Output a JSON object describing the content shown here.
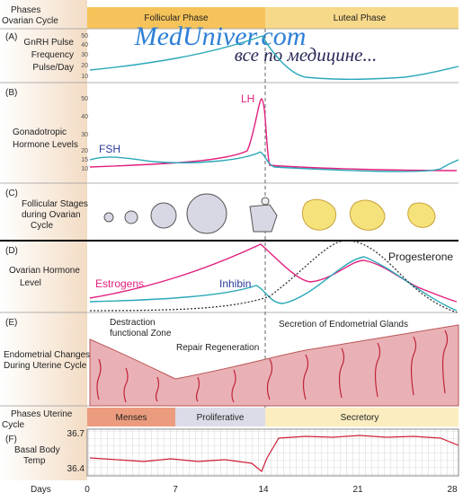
{
  "watermark": {
    "site": "MedUniver.com",
    "tagline": "все по медицине..."
  },
  "phases": {
    "label": [
      "Phases",
      "Ovarian Cycle"
    ],
    "follicular": "Follicular Phase",
    "luteal": "Luteal Phase"
  },
  "panels": [
    {
      "letter": "(A)",
      "label": [
        "GnRH Pulse",
        "Frequency",
        "Pulse/Day"
      ],
      "ticks": [
        50,
        40,
        30,
        20,
        10
      ]
    },
    {
      "letter": "(B)",
      "label": [
        "Gonadotropic",
        "Hormone Levels"
      ],
      "ticks": [
        50,
        40,
        30,
        20,
        15,
        10
      ],
      "curve_labels": [
        "LH",
        "FSH"
      ]
    },
    {
      "letter": "(C)",
      "label": [
        "Follicular Stages",
        "during Ovarian",
        "Cycle"
      ]
    },
    {
      "letter": "(D)",
      "label": [
        "Ovarian Hormone",
        "Level"
      ],
      "curve_labels": [
        "Estrogens",
        "Inhibin",
        "Progesterone"
      ]
    },
    {
      "letter": "(E)",
      "label": [
        "Endometrial Changes",
        "During Uterine Cycle"
      ],
      "annotations": [
        "Destraction",
        "functional Zone",
        "Repair Regeneration",
        "Secretion of Endometrial Glands"
      ]
    }
  ],
  "uterine_phases": {
    "label": [
      "Phases Uterine",
      "Cycle"
    ],
    "menses": "Menses",
    "proliferative": "Proliferative",
    "secretory": "Secretory"
  },
  "bbt": {
    "letter": "(F)",
    "label": [
      "Basal Body",
      "Temp"
    ],
    "ticks": [
      36.7,
      36.4
    ]
  },
  "days": {
    "label": "Days",
    "ticks": [
      0,
      7,
      14,
      21,
      28
    ]
  }
}
